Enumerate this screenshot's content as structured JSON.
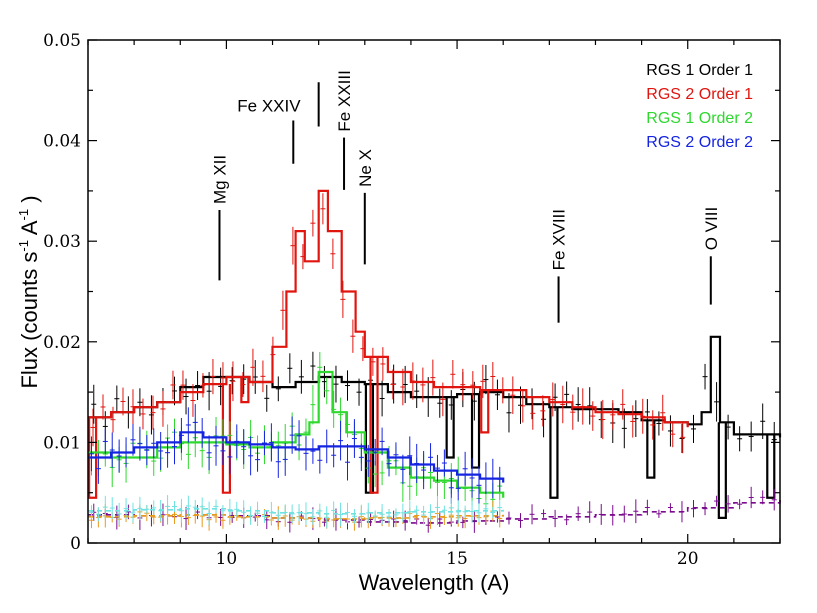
{
  "chart_data": {
    "type": "line",
    "xlabel": "Wavelength (A)",
    "ylabel": {
      "text1": "Flux  (counts s",
      "sup1": "-1",
      "text2": " A",
      "sup2": "-1",
      "text3": " )"
    },
    "xlim": [
      7.0,
      22.0
    ],
    "ylim": [
      0.0,
      0.05
    ],
    "x_ticks": [
      10,
      15,
      20
    ],
    "x_tick_labels": [
      "10",
      "15",
      "20"
    ],
    "y_ticks": [
      0,
      0.01,
      0.02,
      0.03,
      0.04,
      0.05
    ],
    "y_tick_labels": [
      "0",
      "0.01",
      "0.02",
      "0.03",
      "0.04",
      "0.05"
    ],
    "legend": [
      "RGS 1 Order 1",
      "RGS 2 Order 1",
      "RGS 1 Order 2",
      "RGS 2 Order 2"
    ],
    "legend_position": "top-right",
    "line_ids": [
      {
        "label": "Mg XII",
        "wavelength": 9.85,
        "y_low": 0.0261,
        "y_high": 0.0331
      },
      {
        "label": "Fe XXIV",
        "wavelength": 11.45,
        "y_low": 0.0377,
        "y_high": 0.042
      },
      {
        "label": "Fe XXIII",
        "wavelength": 12.0,
        "y_low": 0.0414,
        "y_high": 0.0458
      },
      {
        "label": "Fe XXIII",
        "wavelength": 12.55,
        "y_low": 0.0351,
        "y_high": 0.0403
      },
      {
        "label": "Ne X",
        "wavelength": 13.0,
        "y_low": 0.0277,
        "y_high": 0.0348
      },
      {
        "label": "Fe XVIII",
        "wavelength": 17.2,
        "y_low": 0.0219,
        "y_high": 0.0265
      },
      {
        "label": "O VIII",
        "wavelength": 20.5,
        "y_low": 0.0237,
        "y_high": 0.0285
      }
    ],
    "series": [
      {
        "name": "RGS 1 Order 1 model",
        "color": "#000000",
        "x": [
          7.0,
          7.5,
          8.0,
          8.5,
          9.0,
          9.5,
          10.0,
          10.5,
          11.0,
          11.5,
          12.0,
          12.5,
          13.0,
          13.5,
          14.0,
          14.5,
          15.0,
          15.5,
          16.0,
          16.5,
          17.0,
          17.5,
          18.0,
          18.5,
          19.0,
          19.5,
          20.0,
          20.3,
          20.5,
          20.7,
          21.0,
          21.5,
          22.0
        ],
        "values": [
          0.0125,
          0.013,
          0.0135,
          0.014,
          0.0155,
          0.0165,
          0.0165,
          0.016,
          0.0155,
          0.016,
          0.0165,
          0.016,
          0.0158,
          0.015,
          0.0145,
          0.0145,
          0.0148,
          0.015,
          0.0145,
          0.0138,
          0.0135,
          0.0133,
          0.0133,
          0.013,
          0.0122,
          0.012,
          0.0118,
          0.013,
          0.0205,
          0.012,
          0.0108,
          0.0108,
          0.0105
        ],
        "dips": [
          {
            "x": 13.1,
            "y": 0.005
          },
          {
            "x": 14.85,
            "y": 0.0085
          },
          {
            "x": 15.4,
            "y": 0.0075
          },
          {
            "x": 17.1,
            "y": 0.0045
          },
          {
            "x": 19.2,
            "y": 0.0065
          },
          {
            "x": 20.75,
            "y": 0.0025
          },
          {
            "x": 21.8,
            "y": 0.0045
          }
        ]
      },
      {
        "name": "RGS 2 Order 1 model",
        "color": "#e0150f",
        "x": [
          7.0,
          7.5,
          8.0,
          8.5,
          9.0,
          9.5,
          10.0,
          10.5,
          11.0,
          11.3,
          11.5,
          11.7,
          12.0,
          12.2,
          12.5,
          12.8,
          13.0,
          13.5,
          14.0,
          14.5,
          15.0,
          15.5,
          16.0,
          16.5,
          17.0,
          17.5,
          18.0,
          18.5,
          19.0,
          19.5,
          20.0
        ],
        "values": [
          0.0125,
          0.013,
          0.0135,
          0.014,
          0.015,
          0.0158,
          0.0165,
          0.016,
          0.0195,
          0.025,
          0.031,
          0.028,
          0.035,
          0.031,
          0.025,
          0.021,
          0.0185,
          0.017,
          0.016,
          0.0155,
          0.0155,
          0.0152,
          0.0152,
          0.0145,
          0.014,
          0.0135,
          0.013,
          0.0128,
          0.0125,
          0.012,
          0.0115
        ],
        "dips": [
          {
            "x": 7.1,
            "y": 0.0045
          },
          {
            "x": 10.0,
            "y": 0.005
          },
          {
            "x": 10.4,
            "y": 0.014
          },
          {
            "x": 13.2,
            "y": 0.005
          },
          {
            "x": 15.6,
            "y": 0.011
          }
        ]
      },
      {
        "name": "RGS 1 Order 2 model",
        "color": "#2ed82e",
        "x": [
          7.0,
          7.5,
          8.0,
          8.5,
          9.0,
          9.5,
          10.0,
          10.5,
          11.0,
          11.5,
          11.8,
          12.0,
          12.3,
          12.6,
          13.0,
          13.5,
          14.0,
          14.5,
          15.0,
          15.5,
          16.0
        ],
        "values": [
          0.009,
          0.0085,
          0.0085,
          0.0095,
          0.01,
          0.01,
          0.0098,
          0.0095,
          0.01,
          0.0108,
          0.012,
          0.017,
          0.013,
          0.011,
          0.009,
          0.0075,
          0.0065,
          0.0062,
          0.0055,
          0.005,
          0.0045
        ]
      },
      {
        "name": "RGS 2 Order 2 model",
        "color": "#1524e0",
        "x": [
          7.0,
          7.5,
          8.0,
          8.5,
          9.0,
          9.5,
          10.0,
          10.5,
          11.0,
          11.5,
          12.0,
          12.5,
          13.0,
          13.5,
          14.0,
          14.5,
          15.0,
          15.5,
          16.0
        ],
        "values": [
          0.0085,
          0.009,
          0.0095,
          0.01,
          0.011,
          0.0105,
          0.01,
          0.0098,
          0.0095,
          0.0093,
          0.0096,
          0.0096,
          0.0093,
          0.0085,
          0.0078,
          0.0072,
          0.0068,
          0.0064,
          0.006
        ]
      },
      {
        "name": "Background RGS 1",
        "color": "#7a0a8e",
        "x": [
          7.0,
          8.0,
          9.0,
          10.0,
          11.0,
          12.0,
          13.0,
          14.0,
          15.0,
          16.0,
          17.0,
          18.0,
          19.0,
          20.0,
          21.0,
          22.0
        ],
        "values": [
          0.0028,
          0.0027,
          0.0028,
          0.0027,
          0.0025,
          0.0023,
          0.0021,
          0.002,
          0.0022,
          0.0024,
          0.0026,
          0.0028,
          0.0031,
          0.0035,
          0.004,
          0.0045
        ]
      },
      {
        "name": "Background RGS 2",
        "color": "#e89a1c",
        "x": [
          7.0,
          8.0,
          9.0,
          10.0,
          11.0,
          12.0,
          13.0,
          14.0,
          15.0,
          16.0
        ],
        "values": [
          0.0026,
          0.0027,
          0.0028,
          0.0026,
          0.0025,
          0.0024,
          0.0025,
          0.0026,
          0.0027,
          0.0028
        ]
      },
      {
        "name": "Background order 2",
        "color": "#6fe2e2",
        "x": [
          7.0,
          8.0,
          9.0,
          10.0,
          11.0,
          12.0,
          13.0,
          14.0,
          15.0,
          16.0
        ],
        "values": [
          0.0032,
          0.0033,
          0.0034,
          0.0032,
          0.003,
          0.0029,
          0.003,
          0.0031,
          0.0032,
          0.0033
        ]
      }
    ]
  }
}
